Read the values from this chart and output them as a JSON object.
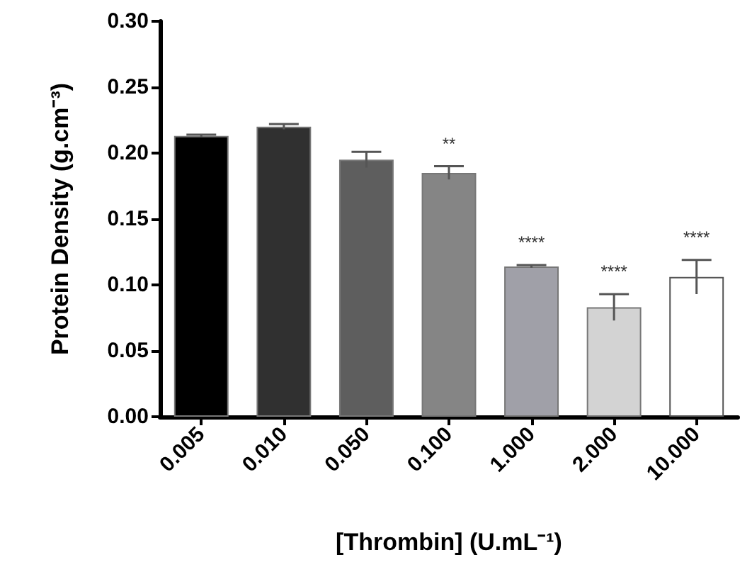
{
  "chart_data": {
    "type": "bar",
    "xlabel": "[Thrombin] (U.mL⁻¹)",
    "ylabel": "Protein Density (g.cm⁻³)",
    "categories": [
      "0.005",
      "0.010",
      "0.050",
      "0.100",
      "1.000",
      "2.000",
      "10.000"
    ],
    "values": [
      0.213,
      0.22,
      0.195,
      0.185,
      0.114,
      0.083,
      0.106
    ],
    "errors": [
      0.001,
      0.002,
      0.006,
      0.005,
      0.001,
      0.01,
      0.013
    ],
    "colors": [
      "#000000",
      "#303030",
      "#5e5e5e",
      "#858585",
      "#a0a0a8",
      "#d3d3d3",
      "#ffffff"
    ],
    "ylim": [
      0,
      0.3
    ],
    "yticks": [
      {
        "value": 0,
        "label": "0.00"
      },
      {
        "value": 0.05,
        "label": "0.05"
      },
      {
        "value": 0.1,
        "label": "0.10"
      },
      {
        "value": 0.15,
        "label": "0.15"
      },
      {
        "value": 0.2,
        "label": "0.20"
      },
      {
        "value": 0.25,
        "label": "0.25"
      },
      {
        "value": 0.3,
        "label": "0.30"
      }
    ],
    "grid": false,
    "annotations": [
      {
        "text": "**",
        "x": "0.100",
        "y": 0.185
      },
      {
        "text": "****",
        "x": "1.000",
        "y": 0.114
      },
      {
        "text": "****",
        "x": "2.000",
        "y": 0.083
      },
      {
        "text": "****",
        "x": "10.000",
        "y": 0.106
      }
    ]
  }
}
